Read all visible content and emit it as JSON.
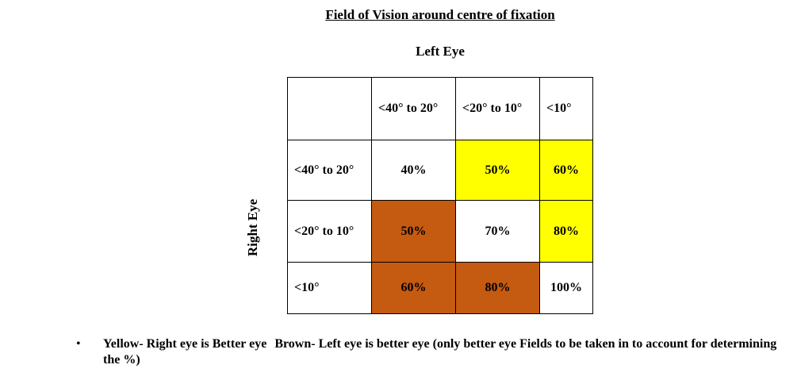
{
  "title": "Field of Vision around centre of fixation",
  "column_axis_label": "Left Eye",
  "row_axis_label": "Right Eye",
  "table": {
    "column_headers": [
      "<40° to 20°",
      "<20° to 10°",
      "<10°"
    ],
    "rows": [
      {
        "header": "<40° to 20°",
        "cells": [
          {
            "value": "40%",
            "color": "white"
          },
          {
            "value": "50%",
            "color": "yellow"
          },
          {
            "value": "60%",
            "color": "yellow"
          }
        ]
      },
      {
        "header": "<20° to 10°",
        "cells": [
          {
            "value": "50%",
            "color": "brown"
          },
          {
            "value": "70%",
            "color": "white"
          },
          {
            "value": "80%",
            "color": "yellow"
          }
        ]
      },
      {
        "header": "<10°",
        "cells": [
          {
            "value": "60%",
            "color": "brown"
          },
          {
            "value": "80%",
            "color": "brown"
          },
          {
            "value": "100%",
            "color": "white"
          }
        ]
      }
    ]
  },
  "colors": {
    "yellow": "#ffff00",
    "brown": "#c55a11",
    "white": "#ffffff"
  },
  "legend_note": {
    "bullet": "•",
    "yellow_text": "Yellow- Right eye is Better eye",
    "brown_text": "Brown- Left eye is better eye (only better eye Fields to be taken in to account for determining the %)"
  }
}
